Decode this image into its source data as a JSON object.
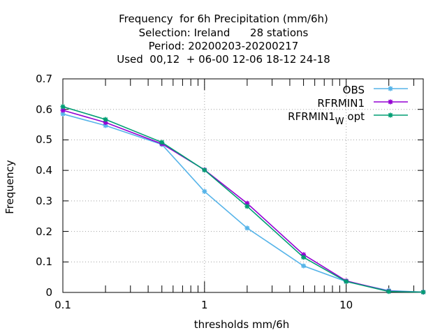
{
  "chart_data": {
    "type": "line",
    "title_lines": [
      "Frequency  for 6h Precipitation (mm/6h)",
      "Selection: Ireland      28 stations",
      "Period: 20200203-20200217",
      "Used  00,12  + 06-00 12-06 18-12 24-18"
    ],
    "xlabel": "thresholds mm/6h",
    "ylabel": "Frequency",
    "xscale": "log",
    "xlim": [
      0.1,
      35
    ],
    "ylim": [
      0,
      0.7
    ],
    "x_ticks": [
      0.1,
      1,
      10
    ],
    "x_tick_labels": [
      "0.1",
      "1",
      "10"
    ],
    "y_ticks": [
      0,
      0.1,
      0.2,
      0.3,
      0.4,
      0.5,
      0.6,
      0.7
    ],
    "y_tick_labels": [
      "0",
      "0.1",
      "0.2",
      "0.3",
      "0.4",
      "0.5",
      "0.6",
      "0.7"
    ],
    "grid": true,
    "legend_position": "top-right",
    "x": [
      0.1,
      0.2,
      0.5,
      1,
      2,
      5,
      10,
      20,
      35
    ],
    "series": [
      {
        "name": "OBS",
        "color": "#56b4e9",
        "marker": "star",
        "values": [
          0.585,
          0.547,
          0.485,
          0.331,
          0.211,
          0.087,
          0.036,
          0.006,
          0.001
        ]
      },
      {
        "name": "RFRMIN1",
        "color": "#9400d3",
        "marker": "star",
        "values": [
          0.597,
          0.557,
          0.487,
          0.402,
          0.292,
          0.124,
          0.038,
          0.004,
          0.001
        ]
      },
      {
        "name_main": "RFRMIN1",
        "name_sub": "W",
        "name_suffix": " opt",
        "color": "#009e73",
        "marker": "star",
        "values": [
          0.609,
          0.567,
          0.492,
          0.401,
          0.282,
          0.115,
          0.036,
          0.003,
          0.001
        ]
      }
    ]
  }
}
